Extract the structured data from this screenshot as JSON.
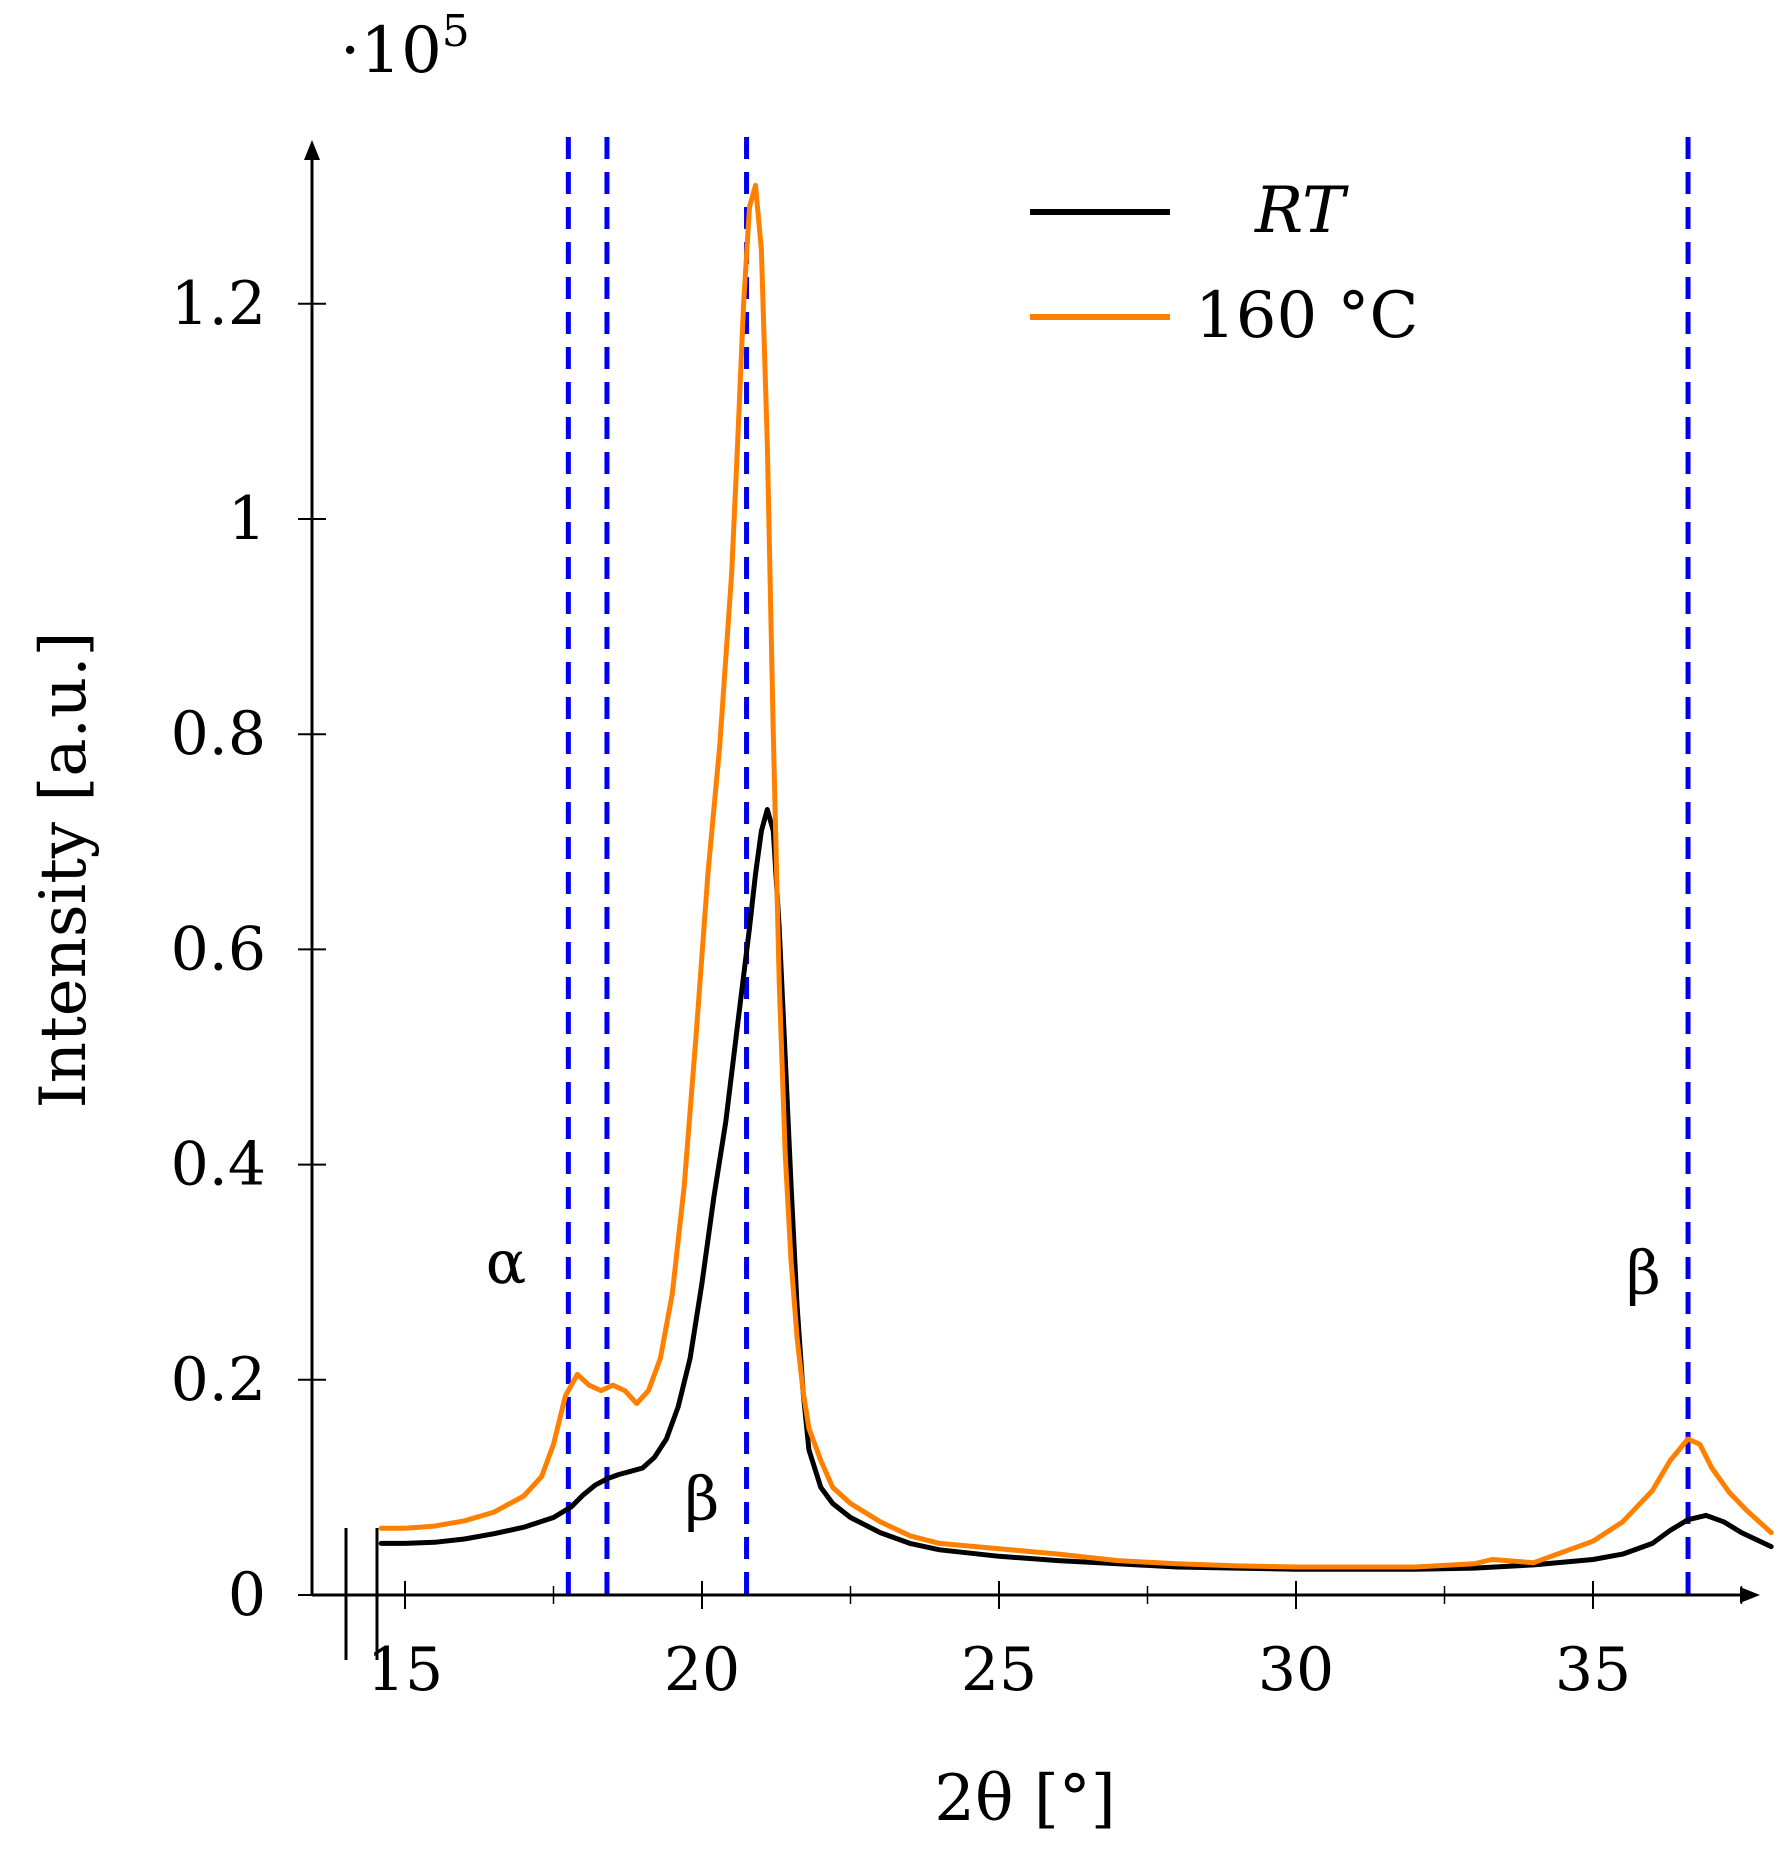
{
  "chart_data": {
    "type": "line",
    "title": "",
    "xlabel": "2θ [°]",
    "ylabel": "Intensity [a.u.]",
    "y_multiplier": "·10",
    "y_multiplier_exp": "5",
    "xlim": [
      14.2,
      38.0
    ],
    "ylim": [
      0,
      1.32
    ],
    "x_ticks": [
      15,
      20,
      25,
      30,
      35
    ],
    "x_tick_labels": [
      "15",
      "20",
      "25",
      "30",
      "35"
    ],
    "x_minor_ticks": [
      17.5,
      22.5,
      27.5,
      32.5,
      37.5
    ],
    "y_ticks": [
      0,
      0.2,
      0.4,
      0.6,
      0.8,
      1.0,
      1.2
    ],
    "y_tick_labels": [
      "0",
      "0.2",
      "0.4",
      "0.6",
      "0.8",
      "1",
      "1.2"
    ],
    "axis_break": true,
    "grid": false,
    "legend_position": "top-right",
    "series": [
      {
        "name": "RT",
        "color": "#000000",
        "x": [
          14.6,
          15.0,
          15.5,
          16.0,
          16.5,
          17.0,
          17.5,
          17.8,
          18.0,
          18.2,
          18.4,
          18.6,
          18.8,
          19.0,
          19.2,
          19.4,
          19.6,
          19.8,
          20.0,
          20.2,
          20.4,
          20.6,
          20.8,
          20.9,
          21.0,
          21.1,
          21.2,
          21.3,
          21.4,
          21.5,
          21.6,
          21.7,
          21.8,
          22.0,
          22.2,
          22.5,
          23.0,
          23.5,
          24.0,
          25.0,
          26.0,
          27.0,
          28.0,
          29.0,
          30.0,
          31.0,
          32.0,
          33.0,
          34.0,
          35.0,
          35.5,
          36.0,
          36.3,
          36.6,
          36.9,
          37.2,
          37.5,
          38.0
        ],
        "y": [
          0.048,
          0.048,
          0.049,
          0.052,
          0.057,
          0.063,
          0.072,
          0.082,
          0.093,
          0.102,
          0.108,
          0.112,
          0.115,
          0.118,
          0.128,
          0.145,
          0.175,
          0.22,
          0.29,
          0.37,
          0.44,
          0.53,
          0.62,
          0.67,
          0.71,
          0.73,
          0.71,
          0.62,
          0.5,
          0.38,
          0.27,
          0.19,
          0.135,
          0.1,
          0.085,
          0.072,
          0.058,
          0.048,
          0.042,
          0.036,
          0.032,
          0.029,
          0.026,
          0.025,
          0.024,
          0.024,
          0.024,
          0.025,
          0.028,
          0.033,
          0.038,
          0.048,
          0.06,
          0.07,
          0.074,
          0.068,
          0.058,
          0.045
        ]
      },
      {
        "name": "160 °C",
        "color": "#ff8000",
        "x": [
          14.6,
          15.0,
          15.5,
          16.0,
          16.5,
          17.0,
          17.3,
          17.5,
          17.7,
          17.9,
          18.1,
          18.3,
          18.5,
          18.7,
          18.9,
          19.1,
          19.3,
          19.5,
          19.7,
          19.9,
          20.1,
          20.3,
          20.5,
          20.6,
          20.7,
          20.8,
          20.9,
          21.0,
          21.1,
          21.2,
          21.3,
          21.4,
          21.5,
          21.6,
          21.7,
          21.8,
          22.0,
          22.2,
          22.5,
          23.0,
          23.5,
          24.0,
          25.0,
          26.0,
          27.0,
          28.0,
          29.0,
          30.0,
          31.0,
          32.0,
          33.0,
          33.3,
          34.0,
          35.0,
          35.5,
          36.0,
          36.3,
          36.6,
          36.8,
          37.0,
          37.3,
          37.6,
          38.0
        ],
        "y": [
          0.062,
          0.062,
          0.064,
          0.069,
          0.077,
          0.092,
          0.11,
          0.14,
          0.185,
          0.205,
          0.195,
          0.19,
          0.195,
          0.19,
          0.178,
          0.19,
          0.22,
          0.28,
          0.38,
          0.52,
          0.67,
          0.79,
          0.95,
          1.07,
          1.2,
          1.29,
          1.31,
          1.25,
          1.07,
          0.8,
          0.57,
          0.41,
          0.31,
          0.24,
          0.19,
          0.155,
          0.125,
          0.1,
          0.085,
          0.068,
          0.055,
          0.048,
          0.043,
          0.038,
          0.032,
          0.029,
          0.027,
          0.026,
          0.026,
          0.026,
          0.029,
          0.033,
          0.03,
          0.05,
          0.068,
          0.097,
          0.125,
          0.145,
          0.14,
          0.118,
          0.095,
          0.078,
          0.058
        ]
      }
    ],
    "reference_lines": [
      {
        "x": 17.75,
        "color": "#0000ee"
      },
      {
        "x": 18.4,
        "color": "#0000ee"
      },
      {
        "x": 20.75,
        "color": "#0000ee"
      },
      {
        "x": 36.6,
        "color": "#0000ee"
      }
    ],
    "annotations": [
      {
        "text": "α",
        "x": 16.7,
        "y": 0.29
      },
      {
        "text": "β",
        "x": 20.0,
        "y": 0.07
      },
      {
        "text": "β",
        "x": 35.85,
        "y": 0.28
      }
    ]
  }
}
